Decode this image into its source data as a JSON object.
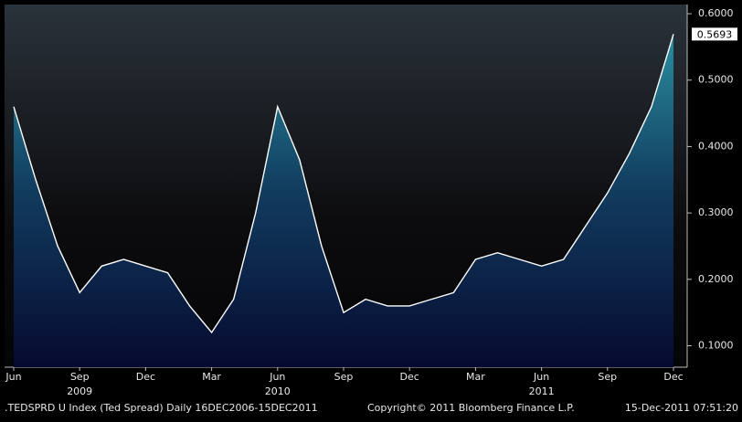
{
  "chart_data": {
    "type": "area",
    "footer_left": ".TEDSPRD U Index (Ted Spread)  Daily 16DEC2006-15DEC2011",
    "copyright": "Copyright© 2011 Bloomberg Finance L.P.",
    "timestamp": "15-Dec-2011 07:51:20",
    "x": [
      "2009-06",
      "2009-07",
      "2009-08",
      "2009-09",
      "2009-10",
      "2009-11",
      "2009-12",
      "2010-01",
      "2010-02",
      "2010-03",
      "2010-04",
      "2010-05",
      "2010-06",
      "2010-07",
      "2010-08",
      "2010-09",
      "2010-10",
      "2010-11",
      "2010-12",
      "2011-01",
      "2011-02",
      "2011-03",
      "2011-04",
      "2011-05",
      "2011-06",
      "2011-07",
      "2011-08",
      "2011-09",
      "2011-10",
      "2011-11",
      "2011-12"
    ],
    "series": [
      {
        "name": ".TEDSPRD U Index",
        "color": "#ffffff",
        "values": [
          0.46,
          0.35,
          0.25,
          0.18,
          0.22,
          0.23,
          0.22,
          0.21,
          0.16,
          0.12,
          0.17,
          0.3,
          0.46,
          0.38,
          0.25,
          0.15,
          0.17,
          0.16,
          0.16,
          0.17,
          0.18,
          0.23,
          0.24,
          0.23,
          0.22,
          0.23,
          0.28,
          0.33,
          0.39,
          0.46,
          0.5693
        ]
      }
    ],
    "xlim": [
      "2009-06",
      "2011-12"
    ],
    "xticks": [
      {
        "value": "2009-06",
        "label": "Jun"
      },
      {
        "value": "2009-09",
        "label": "Sep"
      },
      {
        "value": "2009-12",
        "label": "Dec"
      },
      {
        "value": "2010-03",
        "label": "Mar"
      },
      {
        "value": "2010-06",
        "label": "Jun"
      },
      {
        "value": "2010-09",
        "label": "Sep"
      },
      {
        "value": "2010-12",
        "label": "Dec"
      },
      {
        "value": "2011-03",
        "label": "Mar"
      },
      {
        "value": "2011-06",
        "label": "Jun"
      },
      {
        "value": "2011-09",
        "label": "Sep"
      },
      {
        "value": "2011-12",
        "label": "Dec"
      }
    ],
    "year_labels": [
      {
        "value": "2009-09",
        "label": "2009"
      },
      {
        "value": "2010-06",
        "label": "2010"
      },
      {
        "value": "2011-06",
        "label": "2011"
      }
    ],
    "ylim": [
      0.0677,
      0.6138
    ],
    "yticks": [
      {
        "value": 0.1,
        "label": "0.1000"
      },
      {
        "value": 0.2,
        "label": "0.2000"
      },
      {
        "value": 0.3,
        "label": "0.3000"
      },
      {
        "value": 0.4,
        "label": "0.4000"
      },
      {
        "value": 0.5,
        "label": "0.5000"
      },
      {
        "value": 0.6,
        "label": "0.6000"
      }
    ]
  }
}
